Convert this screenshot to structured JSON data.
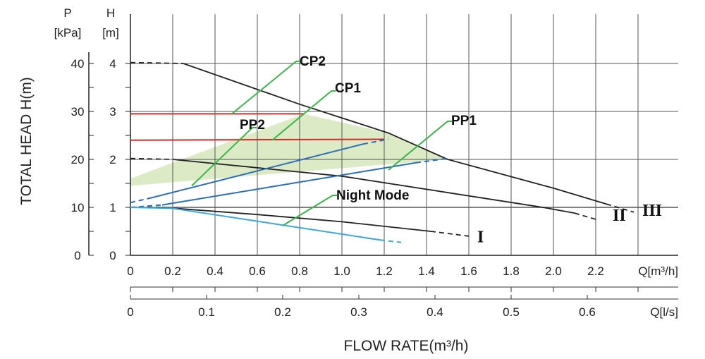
{
  "chart_data": {
    "type": "line",
    "xlabel": "FLOW RATE(m³/h)",
    "ylabel": "TOTAL HEAD H(m)",
    "x_unit_top": "Q[m³/h]",
    "x_unit_bottom": "Q[l/s]",
    "y_unit_kpa_letter": "P",
    "y_unit_kpa": "[kPa]",
    "y_unit_m_letter": "H",
    "y_unit_m": "[m]",
    "xlim": [
      0,
      2.6
    ],
    "ylim": [
      0,
      4.2
    ],
    "x_ticks": [
      "0",
      "0.2",
      "0.4",
      "0.6",
      "0.8",
      "1.0",
      "1.2",
      "1.4",
      "1.6",
      "1.8",
      "2.0",
      "2.2"
    ],
    "x_ticks_ls": [
      "0",
      "0.1",
      "0.2",
      "0.3",
      "0.4",
      "0.5",
      "0.6"
    ],
    "y_ticks_m": [
      "0",
      "1",
      "2",
      "3",
      "4"
    ],
    "y_ticks_kpa": [
      "0",
      "10",
      "20",
      "30",
      "40"
    ],
    "grid": true,
    "series": [
      {
        "name": "III",
        "color": "#222222",
        "points": [
          [
            0.25,
            4.0
          ],
          [
            0.8,
            3.15
          ],
          [
            1.22,
            2.55
          ],
          [
            1.5,
            2.0
          ],
          [
            2.0,
            1.4
          ],
          [
            2.25,
            1.07
          ]
        ],
        "dashed_start": [
          [
            0,
            4.02
          ],
          [
            0.25,
            4.0
          ]
        ],
        "dashed_end": [
          [
            2.25,
            1.07
          ],
          [
            2.38,
            0.9
          ]
        ]
      },
      {
        "name": "II",
        "color": "#222222",
        "points": [
          [
            0.2,
            2.0
          ],
          [
            1.0,
            1.65
          ],
          [
            1.95,
            1.0
          ],
          [
            2.1,
            0.88
          ]
        ],
        "dashed_start": [
          [
            0,
            2.02
          ],
          [
            0.2,
            2.0
          ]
        ],
        "dashed_end": [
          [
            2.1,
            0.88
          ],
          [
            2.2,
            0.75
          ]
        ]
      },
      {
        "name": "I",
        "color": "#222222",
        "points": [
          [
            0.15,
            1.0
          ],
          [
            0.6,
            0.85
          ],
          [
            1.0,
            0.7
          ],
          [
            1.42,
            0.5
          ]
        ],
        "dashed_start": [
          [
            0,
            1.0
          ],
          [
            0.15,
            1.0
          ]
        ],
        "dashed_end": [
          [
            1.42,
            0.5
          ],
          [
            1.6,
            0.4
          ]
        ]
      },
      {
        "name": "CP2",
        "color": "#d42a2a",
        "points": [
          [
            0,
            2.95
          ],
          [
            0.82,
            2.95
          ]
        ]
      },
      {
        "name": "CP1",
        "color": "#d42a2a",
        "points": [
          [
            0,
            2.4
          ],
          [
            1.2,
            2.42
          ]
        ]
      },
      {
        "name": "PP2",
        "color": "#2a6fb5",
        "points": [
          [
            0.1,
            1.2
          ],
          [
            1.1,
            2.32
          ]
        ],
        "dashed_start": [
          [
            0,
            1.1
          ],
          [
            0.1,
            1.2
          ]
        ],
        "dashed_end": [
          [
            1.1,
            2.32
          ],
          [
            1.22,
            2.42
          ]
        ]
      },
      {
        "name": "PP1",
        "color": "#2a6fb5",
        "points": [
          [
            0.15,
            1.05
          ],
          [
            1.35,
            1.93
          ]
        ],
        "dashed_start": [
          [
            0,
            1.0
          ],
          [
            0.15,
            1.05
          ]
        ],
        "dashed_end": [
          [
            1.35,
            1.93
          ],
          [
            1.5,
            2.02
          ]
        ]
      },
      {
        "name": "Night Mode",
        "color": "#3aa8e0",
        "points": [
          [
            0,
            1.0
          ],
          [
            0.2,
            0.98
          ],
          [
            1.18,
            0.32
          ]
        ],
        "dashed_end": [
          [
            1.18,
            0.32
          ],
          [
            1.28,
            0.27
          ]
        ]
      }
    ],
    "shaded_region": {
      "color": "#dcebc6",
      "points": [
        [
          0,
          1.45
        ],
        [
          0,
          1.6
        ],
        [
          0.82,
          2.95
        ],
        [
          1.22,
          2.55
        ],
        [
          1.5,
          2.0
        ]
      ]
    },
    "callouts": [
      {
        "label": "CP2",
        "anchor": [
          0.48,
          2.95
        ]
      },
      {
        "label": "CP1",
        "anchor": [
          0.67,
          2.4
        ]
      },
      {
        "label": "PP2",
        "anchor": [
          0.29,
          1.45
        ]
      },
      {
        "label": "PP1",
        "anchor": [
          1.22,
          1.78
        ]
      },
      {
        "label": "Night Mode",
        "anchor": [
          0.72,
          0.62
        ]
      }
    ],
    "curve_labels": [
      {
        "label": "I",
        "x": 1.64,
        "y": 0.3
      },
      {
        "label": "II",
        "x": 2.28,
        "y": 0.75
      },
      {
        "label": "III",
        "x": 2.42,
        "y": 0.85
      }
    ]
  }
}
